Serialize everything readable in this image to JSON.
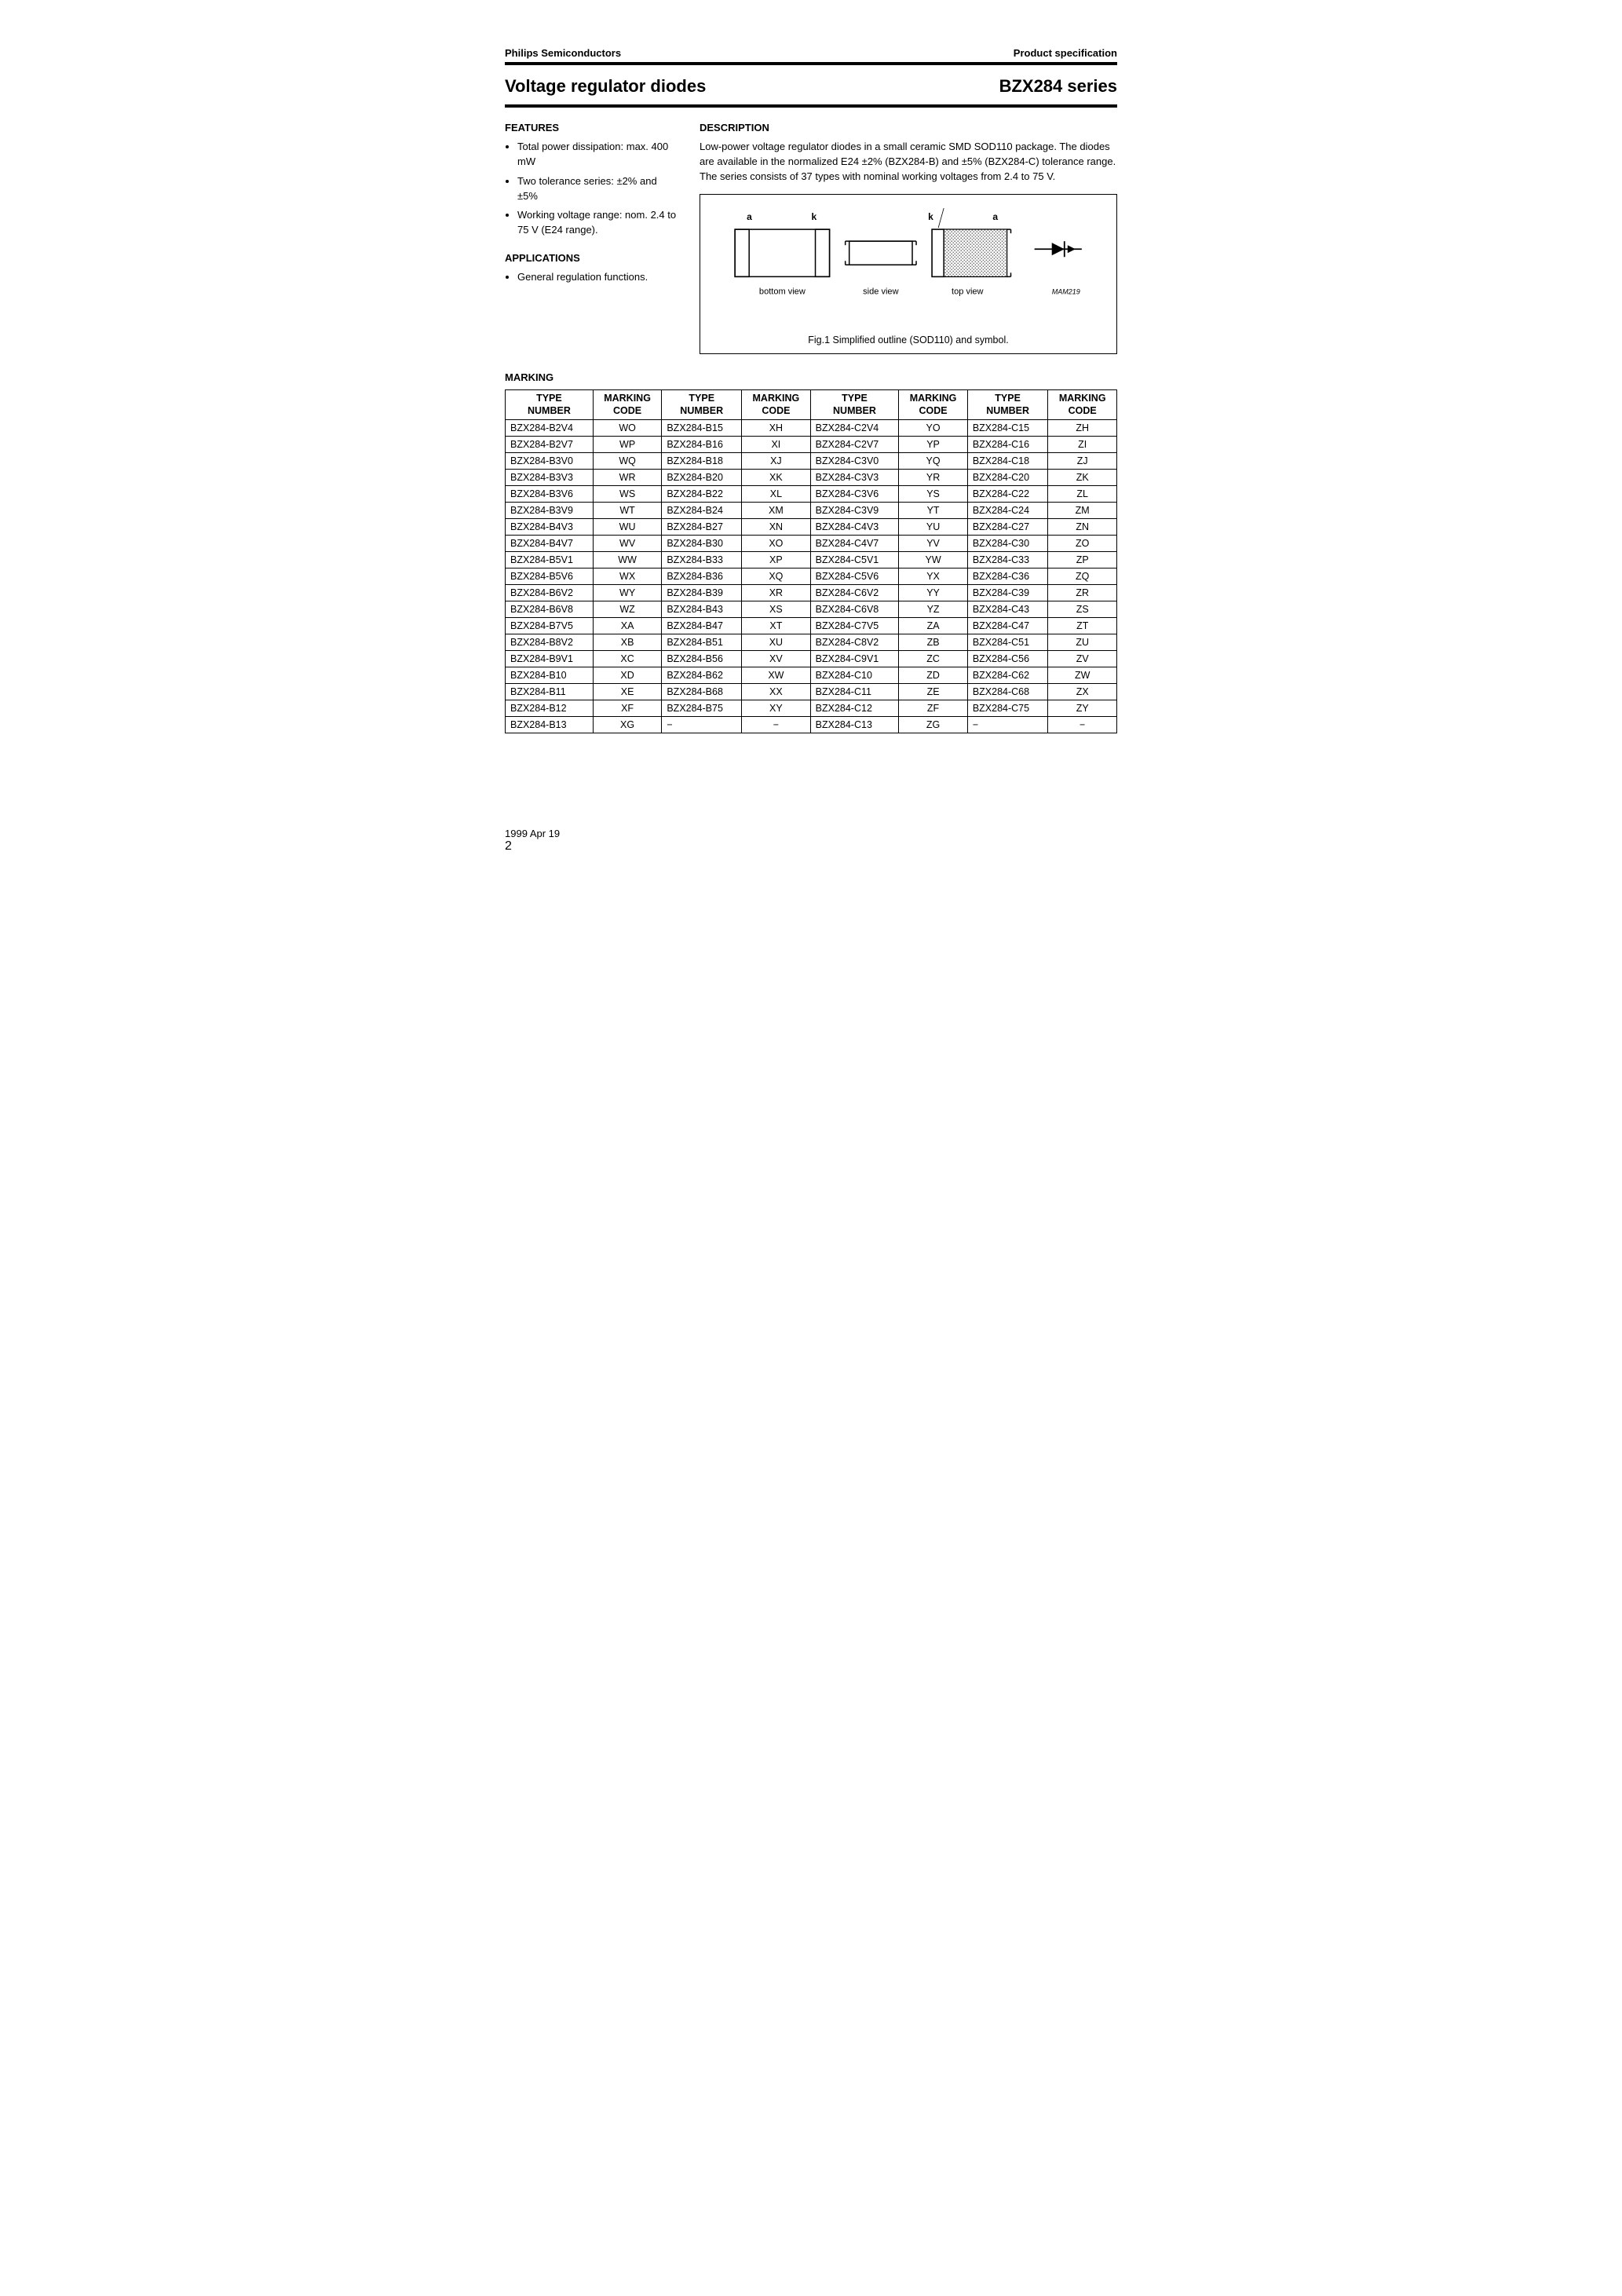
{
  "header": {
    "left": "Philips Semiconductors",
    "right": "Product specification"
  },
  "title": {
    "left": "Voltage regulator diodes",
    "right": "BZX284 series"
  },
  "features": {
    "heading": "FEATURES",
    "items": [
      "Total power dissipation: max. 400 mW",
      "Two tolerance series: ±2% and ±5%",
      "Working voltage range: nom. 2.4 to 75 V (E24 range)."
    ]
  },
  "applications": {
    "heading": "APPLICATIONS",
    "items": [
      "General regulation functions."
    ]
  },
  "description": {
    "heading": "DESCRIPTION",
    "text": "Low-power voltage regulator diodes in a small ceramic SMD SOD110 package. The diodes are available in the normalized E24 ±2% (BZX284-B) and ±5% (BZX284-C) tolerance range. The series consists of 37 types with nominal working voltages from 2.4 to 75 V."
  },
  "figure": {
    "labels": {
      "a1": "a",
      "k1": "k",
      "k2": "k",
      "a2": "a",
      "cathode_mark": "cathode mark",
      "bottom": "bottom view",
      "side": "side view",
      "top": "top view",
      "code": "MAM219"
    },
    "caption": "Fig.1  Simplified outline (SOD110) and symbol."
  },
  "marking": {
    "heading": "MARKING",
    "headers": [
      "TYPE NUMBER",
      "MARKING CODE",
      "TYPE NUMBER",
      "MARKING CODE",
      "TYPE NUMBER",
      "MARKING CODE",
      "TYPE NUMBER",
      "MARKING CODE"
    ],
    "rows": [
      [
        "BZX284-B2V4",
        "WO",
        "BZX284-B15",
        "XH",
        "BZX284-C2V4",
        "YO",
        "BZX284-C15",
        "ZH"
      ],
      [
        "BZX284-B2V7",
        "WP",
        "BZX284-B16",
        "XI",
        "BZX284-C2V7",
        "YP",
        "BZX284-C16",
        "ZI"
      ],
      [
        "BZX284-B3V0",
        "WQ",
        "BZX284-B18",
        "XJ",
        "BZX284-C3V0",
        "YQ",
        "BZX284-C18",
        "ZJ"
      ],
      [
        "BZX284-B3V3",
        "WR",
        "BZX284-B20",
        "XK",
        "BZX284-C3V3",
        "YR",
        "BZX284-C20",
        "ZK"
      ],
      [
        "BZX284-B3V6",
        "WS",
        "BZX284-B22",
        "XL",
        "BZX284-C3V6",
        "YS",
        "BZX284-C22",
        "ZL"
      ],
      [
        "BZX284-B3V9",
        "WT",
        "BZX284-B24",
        "XM",
        "BZX284-C3V9",
        "YT",
        "BZX284-C24",
        "ZM"
      ],
      [
        "BZX284-B4V3",
        "WU",
        "BZX284-B27",
        "XN",
        "BZX284-C4V3",
        "YU",
        "BZX284-C27",
        "ZN"
      ],
      [
        "BZX284-B4V7",
        "WV",
        "BZX284-B30",
        "XO",
        "BZX284-C4V7",
        "YV",
        "BZX284-C30",
        "ZO"
      ],
      [
        "BZX284-B5V1",
        "WW",
        "BZX284-B33",
        "XP",
        "BZX284-C5V1",
        "YW",
        "BZX284-C33",
        "ZP"
      ],
      [
        "BZX284-B5V6",
        "WX",
        "BZX284-B36",
        "XQ",
        "BZX284-C5V6",
        "YX",
        "BZX284-C36",
        "ZQ"
      ],
      [
        "BZX284-B6V2",
        "WY",
        "BZX284-B39",
        "XR",
        "BZX284-C6V2",
        "YY",
        "BZX284-C39",
        "ZR"
      ],
      [
        "BZX284-B6V8",
        "WZ",
        "BZX284-B43",
        "XS",
        "BZX284-C6V8",
        "YZ",
        "BZX284-C43",
        "ZS"
      ],
      [
        "BZX284-B7V5",
        "XA",
        "BZX284-B47",
        "XT",
        "BZX284-C7V5",
        "ZA",
        "BZX284-C47",
        "ZT"
      ],
      [
        "BZX284-B8V2",
        "XB",
        "BZX284-B51",
        "XU",
        "BZX284-C8V2",
        "ZB",
        "BZX284-C51",
        "ZU"
      ],
      [
        "BZX284-B9V1",
        "XC",
        "BZX284-B56",
        "XV",
        "BZX284-C9V1",
        "ZC",
        "BZX284-C56",
        "ZV"
      ],
      [
        "BZX284-B10",
        "XD",
        "BZX284-B62",
        "XW",
        "BZX284-C10",
        "ZD",
        "BZX284-C62",
        "ZW"
      ],
      [
        "BZX284-B11",
        "XE",
        "BZX284-B68",
        "XX",
        "BZX284-C11",
        "ZE",
        "BZX284-C68",
        "ZX"
      ],
      [
        "BZX284-B12",
        "XF",
        "BZX284-B75",
        "XY",
        "BZX284-C12",
        "ZF",
        "BZX284-C75",
        "ZY"
      ],
      [
        "BZX284-B13",
        "XG",
        "−",
        "−",
        "BZX284-C13",
        "ZG",
        "−",
        "−"
      ]
    ]
  },
  "footer": {
    "date": "1999 Apr 19",
    "page": "2"
  }
}
